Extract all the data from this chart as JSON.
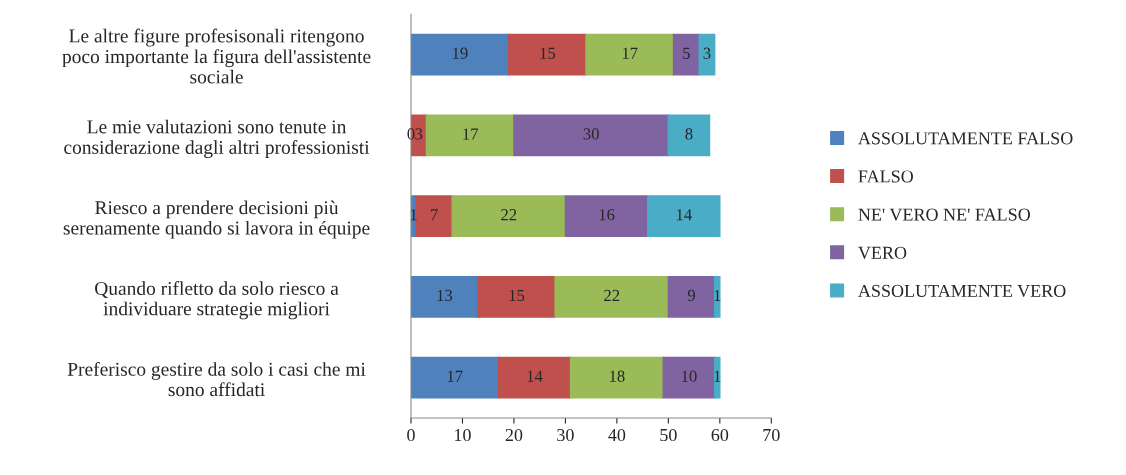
{
  "chart_data": {
    "type": "bar",
    "orientation": "horizontal",
    "stacked": true,
    "categories": [
      "Le altre figure profesisonali ritengono\npoco importante la figura dell'assistente\nsociale",
      "Le mie valutazioni sono tenute in\nconsiderazione dagli altri professionisti",
      "Riesco a prendere decisioni più\nserenamente quando si lavora in équipe",
      "Quando rifletto da solo riesco a\nindividuare strategie migliori",
      "Preferisco gestire da solo i casi che mi\nsono affidati"
    ],
    "series": [
      {
        "name": "ASSOLUTAMENTE FALSO",
        "color": "#4f81bd",
        "values": [
          19,
          0,
          1,
          13,
          17
        ]
      },
      {
        "name": "FALSO",
        "color": "#c0504d",
        "values": [
          15,
          3,
          7,
          15,
          14
        ]
      },
      {
        "name": "NE' VERO NE' FALSO",
        "color": "#9bbb59",
        "values": [
          17,
          17,
          22,
          22,
          18
        ]
      },
      {
        "name": "VERO",
        "color": "#8064a2",
        "values": [
          5,
          30,
          16,
          9,
          10
        ]
      },
      {
        "name": "ASSOLUTAMENTE VERO",
        "color": "#4bacc6",
        "values": [
          3,
          8,
          14,
          1,
          1
        ]
      }
    ],
    "xlim": [
      0,
      70
    ],
    "xticks": [
      0,
      10,
      20,
      30,
      40,
      50,
      60,
      70
    ],
    "data_labels": true,
    "legend": "right",
    "grid": false
  }
}
